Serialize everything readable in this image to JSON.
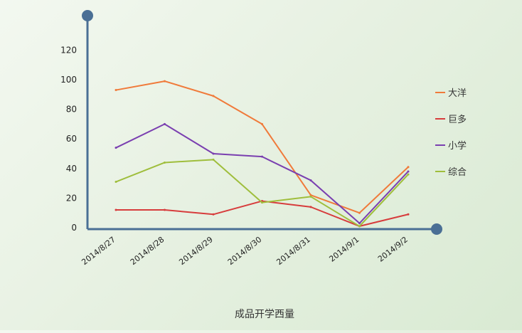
{
  "chart_data": {
    "type": "line",
    "title": "",
    "xlabel": "成品开学西量",
    "ylabel": "",
    "ylim": [
      0,
      130
    ],
    "yticks": [
      0,
      20,
      40,
      60,
      80,
      100,
      120
    ],
    "grid": false,
    "legend_position": "right",
    "categories": [
      "2014/8/27",
      "2014/8/28",
      "2014/8/29",
      "2014/8/30",
      "2014/8/31",
      "2014/9/1",
      "2014/9/2"
    ],
    "series": [
      {
        "name": "大洋",
        "color": "#f07a3a",
        "values": [
          93,
          99,
          89,
          70,
          22,
          10,
          41
        ]
      },
      {
        "name": "巨多",
        "color": "#d73c3c",
        "values": [
          12,
          12,
          9,
          18,
          14,
          1,
          9
        ]
      },
      {
        "name": "小学",
        "color": "#7a3fb0",
        "values": [
          54,
          70,
          50,
          48,
          32,
          3,
          38
        ]
      },
      {
        "name": "综合",
        "color": "#9fbe3c",
        "values": [
          31,
          44,
          46,
          17,
          21,
          1,
          36
        ]
      }
    ]
  }
}
